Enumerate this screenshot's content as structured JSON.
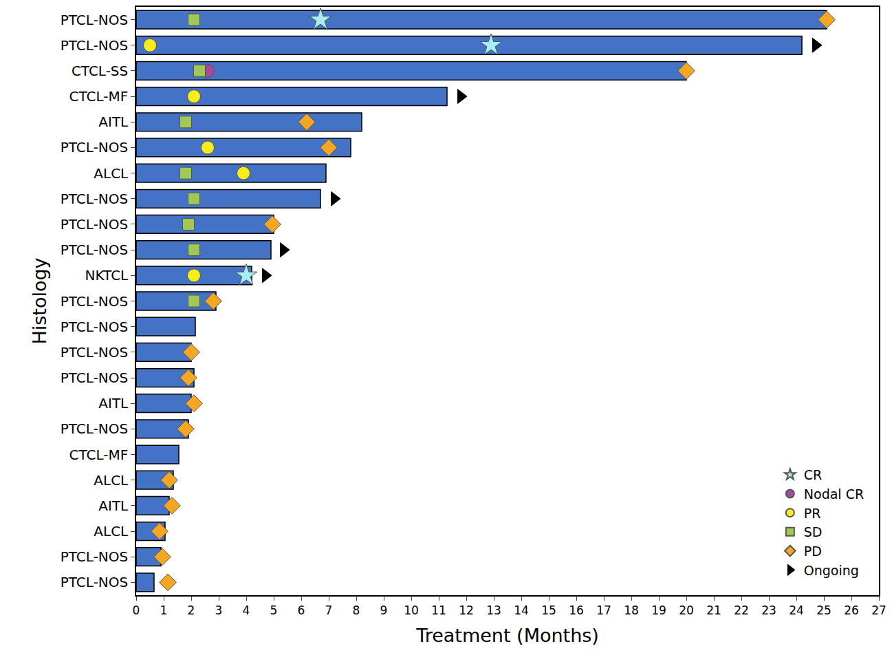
{
  "chart_data": {
    "type": "bar",
    "orientation": "horizontal",
    "x_label": "Treatment (Months)",
    "y_label": "Histology",
    "color": "#4472c4",
    "grid": false,
    "legend": "bottom right",
    "xlim": [
      0,
      27
    ],
    "xticks": [
      0,
      1,
      2,
      3,
      4,
      5,
      6,
      7,
      8,
      9,
      10,
      11,
      12,
      13,
      14,
      15,
      16,
      17,
      18,
      19,
      20,
      21,
      22,
      23,
      24,
      25,
      26,
      27
    ],
    "categories": [
      "PTCL-NOS",
      "PTCL-NOS",
      "CTCL-SS",
      "CTCL-MF",
      "AITL",
      "PTCL-NOS",
      "ALCL",
      "PTCL-NOS",
      "PTCL-NOS",
      "PTCL-NOS",
      "NKTCL",
      "PTCL-NOS",
      "PTCL-NOS",
      "PTCL-NOS",
      "PTCL-NOS",
      "AITL",
      "PTCL-NOS",
      "CTCL-MF",
      "ALCL",
      "AITL",
      "ALCL",
      "PTCL-NOS",
      "PTCL-NOS"
    ],
    "values": [
      25.1,
      24.2,
      20.0,
      11.3,
      8.2,
      7.8,
      6.9,
      6.7,
      5.0,
      4.9,
      4.2,
      2.9,
      2.15,
      2.0,
      2.1,
      2.0,
      1.9,
      1.55,
      1.35,
      1.2,
      1.05,
      0.9,
      0.65
    ],
    "series": [
      {
        "name": "CR",
        "type": "scatter",
        "marker": "star",
        "color": "#a6eef3",
        "values": [
          6.7,
          12.9,
          null,
          null,
          null,
          null,
          null,
          null,
          null,
          null,
          4.0,
          null,
          null,
          null,
          null,
          null,
          null,
          null,
          null,
          null,
          null,
          null,
          null
        ]
      },
      {
        "name": "Nodal CR",
        "type": "scatter",
        "marker": "circle",
        "color": "#a34c9c",
        "values": [
          null,
          null,
          2.6,
          null,
          null,
          null,
          null,
          null,
          null,
          null,
          null,
          null,
          null,
          null,
          null,
          null,
          null,
          null,
          null,
          null,
          null,
          null,
          null
        ]
      },
      {
        "name": "PR",
        "type": "scatter",
        "marker": "circle",
        "color": "#f8ec1c",
        "values": [
          null,
          0.5,
          null,
          2.1,
          null,
          2.6,
          3.9,
          null,
          null,
          null,
          2.1,
          null,
          null,
          null,
          null,
          null,
          null,
          null,
          null,
          null,
          null,
          null,
          null
        ]
      },
      {
        "name": "SD",
        "type": "scatter",
        "marker": "square",
        "color": "#9fc856",
        "values": [
          2.1,
          null,
          2.3,
          null,
          1.8,
          null,
          1.8,
          2.1,
          1.9,
          2.1,
          null,
          2.1,
          null,
          null,
          null,
          null,
          null,
          null,
          null,
          null,
          null,
          null,
          null
        ]
      },
      {
        "name": "PD",
        "type": "scatter",
        "marker": "diamond",
        "color": "#f5a623",
        "values": [
          25.1,
          null,
          20.0,
          null,
          6.2,
          7.0,
          null,
          null,
          4.95,
          null,
          null,
          2.8,
          null,
          2.0,
          1.9,
          2.1,
          1.8,
          null,
          1.2,
          1.3,
          0.85,
          0.95,
          1.15
        ]
      },
      {
        "name": "Ongoing",
        "type": "scatter",
        "marker": "triangle-right",
        "color": "#000000",
        "values": [
          null,
          24.7,
          null,
          11.8,
          null,
          null,
          null,
          7.2,
          null,
          5.35,
          4.7,
          null,
          null,
          null,
          null,
          null,
          null,
          null,
          null,
          null,
          null,
          null,
          null
        ]
      }
    ]
  }
}
